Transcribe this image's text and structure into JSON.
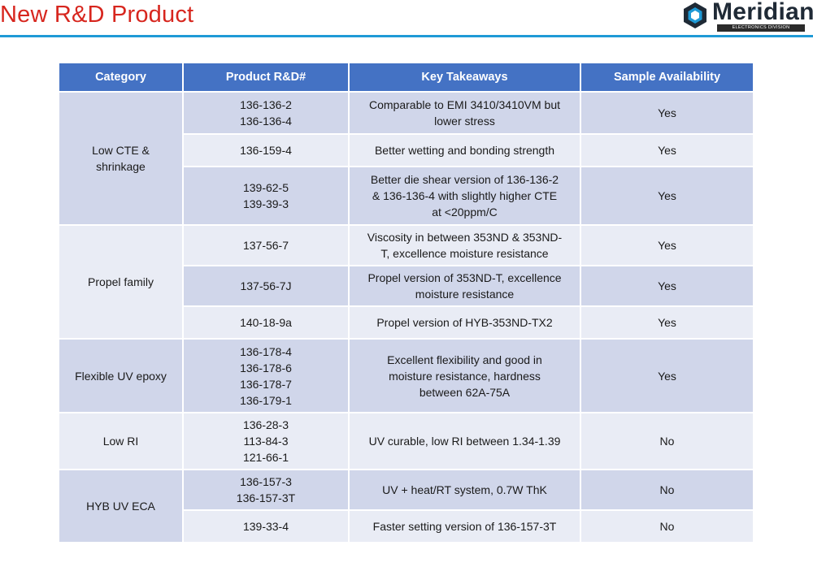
{
  "title": "New R&D Product",
  "logo": {
    "icon": "hexagon-logo-icon",
    "name": "Meridian",
    "tagline": "ELECTRONICS DIVISION"
  },
  "colors": {
    "title": "#d7261e",
    "rule": "#1f9ad6",
    "header": "#4472c4",
    "row_dark": "#d0d6ea",
    "row_light": "#e9ecf5"
  },
  "table": {
    "headers": [
      "Category",
      "Product R&D#",
      "Key Takeaways",
      "Sample Availability"
    ],
    "groups": [
      {
        "category": [
          "Low CTE &",
          "shrinkage"
        ],
        "rows": [
          {
            "products": [
              "136-136-2",
              "136-136-4"
            ],
            "takeaways": [
              "Comparable to EMI 3410/3410VM but",
              "lower stress"
            ],
            "availability": "Yes"
          },
          {
            "products": [
              "136-159-4"
            ],
            "takeaways": [
              "Better wetting and bonding strength"
            ],
            "availability": "Yes"
          },
          {
            "products": [
              "139-62-5",
              "139-39-3"
            ],
            "takeaways": [
              "Better die shear version of 136-136-2",
              "& 136-136-4 with slightly higher CTE",
              "at <20ppm/C"
            ],
            "availability": "Yes"
          }
        ]
      },
      {
        "category": [
          "Propel family"
        ],
        "rows": [
          {
            "products": [
              "137-56-7"
            ],
            "takeaways": [
              "Viscosity in between 353ND & 353ND-",
              "T, excellence moisture resistance"
            ],
            "availability": "Yes"
          },
          {
            "products": [
              "137-56-7J"
            ],
            "takeaways": [
              "Propel version of 353ND-T, excellence",
              "moisture resistance"
            ],
            "availability": "Yes"
          },
          {
            "products": [
              "140-18-9a"
            ],
            "takeaways": [
              "Propel version of HYB-353ND-TX2"
            ],
            "availability": "Yes"
          }
        ]
      },
      {
        "category": [
          "Flexible UV epoxy"
        ],
        "rows": [
          {
            "products": [
              "136-178-4",
              "136-178-6",
              "136-178-7",
              "136-179-1"
            ],
            "takeaways": [
              "Excellent flexibility and good in",
              "moisture resistance, hardness",
              "between 62A-75A"
            ],
            "availability": "Yes"
          }
        ]
      },
      {
        "category": [
          "Low RI"
        ],
        "rows": [
          {
            "products": [
              "136-28-3",
              "113-84-3",
              "121-66-1"
            ],
            "takeaways": [
              "UV curable, low RI between 1.34-1.39"
            ],
            "availability": "No"
          }
        ]
      },
      {
        "category": [
          "HYB UV ECA"
        ],
        "rows": [
          {
            "products": [
              "136-157-3",
              "136-157-3T"
            ],
            "takeaways": [
              "UV + heat/RT system, 0.7W ThK"
            ],
            "availability": "No"
          },
          {
            "products": [
              "139-33-4"
            ],
            "takeaways": [
              "Faster setting version of 136-157-3T"
            ],
            "availability": "No"
          }
        ]
      }
    ]
  }
}
